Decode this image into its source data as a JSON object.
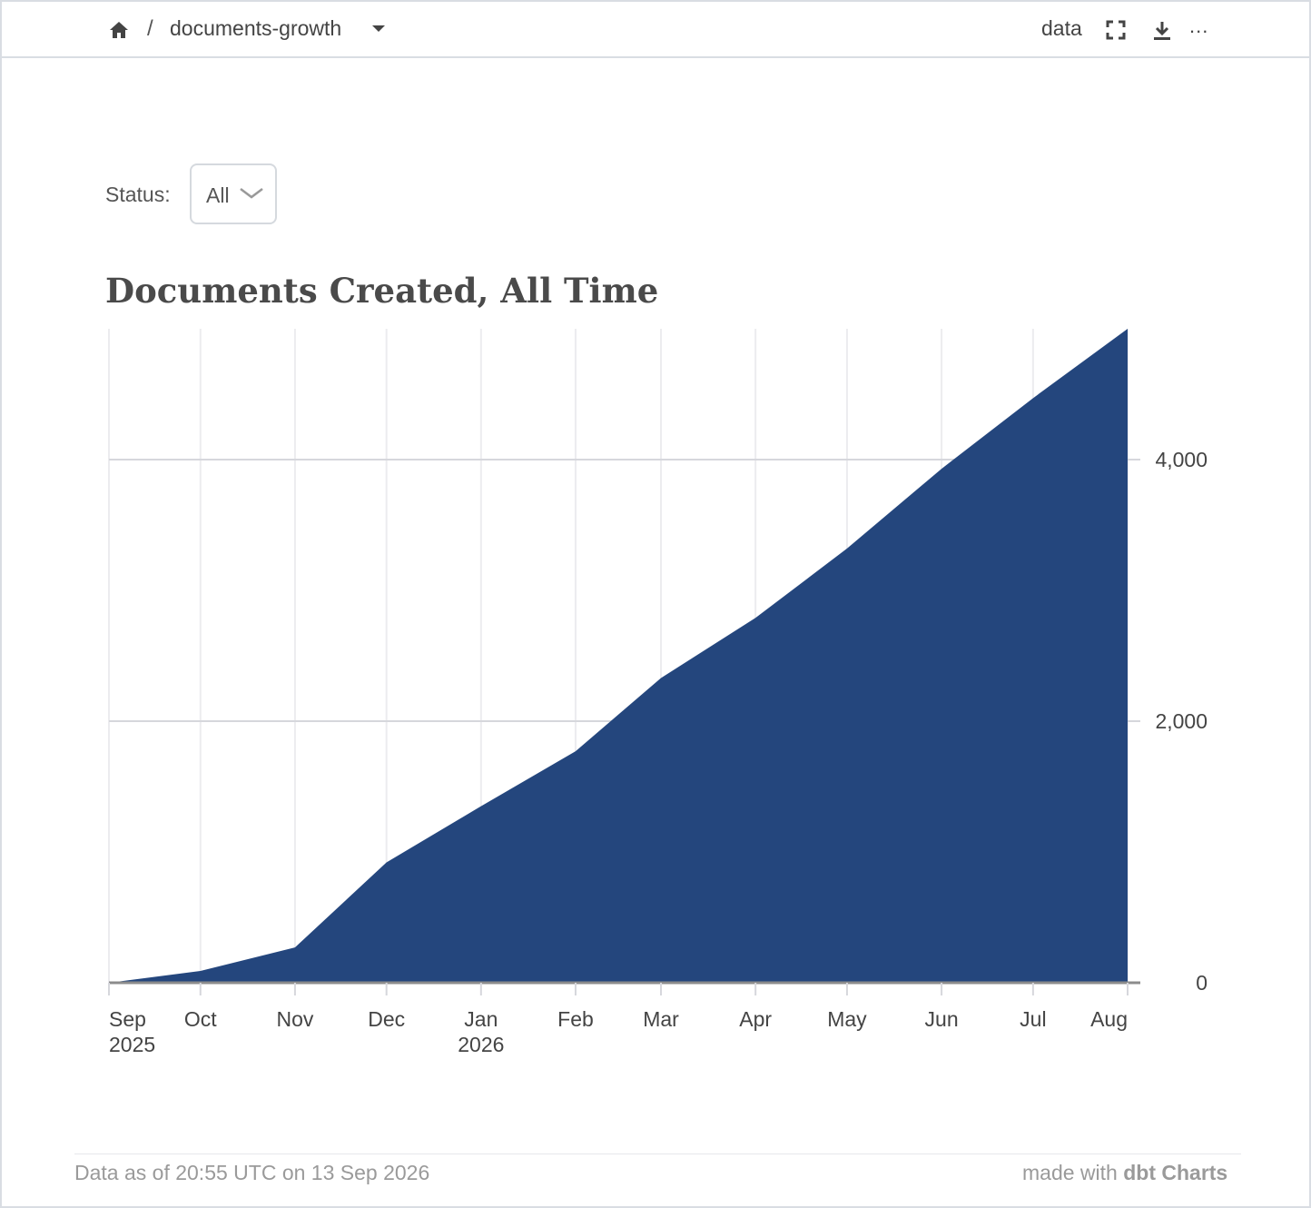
{
  "header": {
    "breadcrumb_separator": "/",
    "dashboard_name": "documents-growth",
    "data_link": "data",
    "more_label": "..."
  },
  "icons": {
    "home": "home-icon",
    "dropdown": "caret-down-icon",
    "fullscreen": "fullscreen-icon",
    "download": "download-icon",
    "more": "more-icon"
  },
  "filter": {
    "label": "Status:",
    "value": "All"
  },
  "chart_data": {
    "type": "area",
    "title": "Documents Created, All Time",
    "xlabel": "",
    "ylabel": "",
    "x": [
      "2025-09-01",
      "2025-10-01",
      "2025-11-01",
      "2025-12-01",
      "2026-01-01",
      "2026-02-01",
      "2026-03-01",
      "2026-04-01",
      "2026-05-01",
      "2026-06-01",
      "2026-07-01",
      "2026-08-01"
    ],
    "x_tick_labels": [
      [
        "Sep",
        "2025"
      ],
      [
        "Oct"
      ],
      [
        "Nov"
      ],
      [
        "Dec"
      ],
      [
        "Jan",
        "2026"
      ],
      [
        "Feb"
      ],
      [
        "Mar"
      ],
      [
        "Apr"
      ],
      [
        "May"
      ],
      [
        "Jun"
      ],
      [
        "Jul"
      ],
      [
        "Aug"
      ]
    ],
    "series": [
      {
        "values": [
          0,
          90,
          270,
          920,
          1350,
          1770,
          2330,
          2790,
          3320,
          3930,
          4470,
          5000
        ],
        "color": "#24467d"
      }
    ],
    "y_ticks": [
      0,
      2000,
      4000
    ],
    "y_tick_labels": [
      "0",
      "2,000",
      "4,000"
    ],
    "ylim": [
      0,
      5000
    ],
    "y_axis_position": "right",
    "grid": true
  },
  "footer": {
    "data_as_of": "Data as of 20:55 UTC on 13 Sep 2026",
    "made_with": "made with",
    "brand": "dbt Charts"
  }
}
